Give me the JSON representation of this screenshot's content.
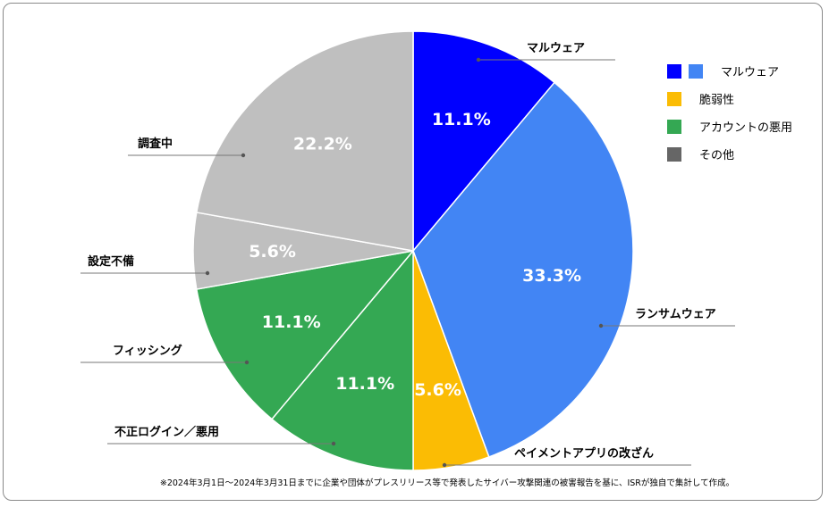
{
  "chart_data": {
    "type": "pie",
    "slices": [
      {
        "label": "マルウェア",
        "value": 11.1,
        "display": "11.1%",
        "color": "#0000ff"
      },
      {
        "label": "ランサムウェア",
        "value": 33.3,
        "display": "33.3%",
        "color": "#4285f4"
      },
      {
        "label": "ペイメントアプリの改ざん",
        "value": 5.6,
        "display": "5.6%",
        "color": "#fbbc04"
      },
      {
        "label": "不正ログイン／悪用",
        "value": 11.1,
        "display": "11.1%",
        "color": "#34a853"
      },
      {
        "label": "フィッシング",
        "value": 11.1,
        "display": "11.1%",
        "color": "#34a853"
      },
      {
        "label": "設定不備",
        "value": 5.6,
        "display": "5.6%",
        "color": "#bfbfbf"
      },
      {
        "label": "調査中",
        "value": 22.2,
        "display": "22.2%",
        "color": "#bfbfbf"
      }
    ],
    "legend": {
      "position": "top-right",
      "items": [
        {
          "label": "マルウェア",
          "colors": [
            "#0000ff",
            "#4285f4"
          ]
        },
        {
          "label": "脆弱性",
          "colors": [
            "#fbbc04"
          ]
        },
        {
          "label": "アカウントの悪用",
          "colors": [
            "#34a853"
          ]
        },
        {
          "label": "その他",
          "colors": [
            "#666666"
          ]
        }
      ]
    },
    "footnote": "※2024年3月1日～2024年3月31日までに企業や団体がプレスリリース等で発表したサイバー攻撃関連の被害報告を基に、ISRが独自で集計して作成。"
  }
}
